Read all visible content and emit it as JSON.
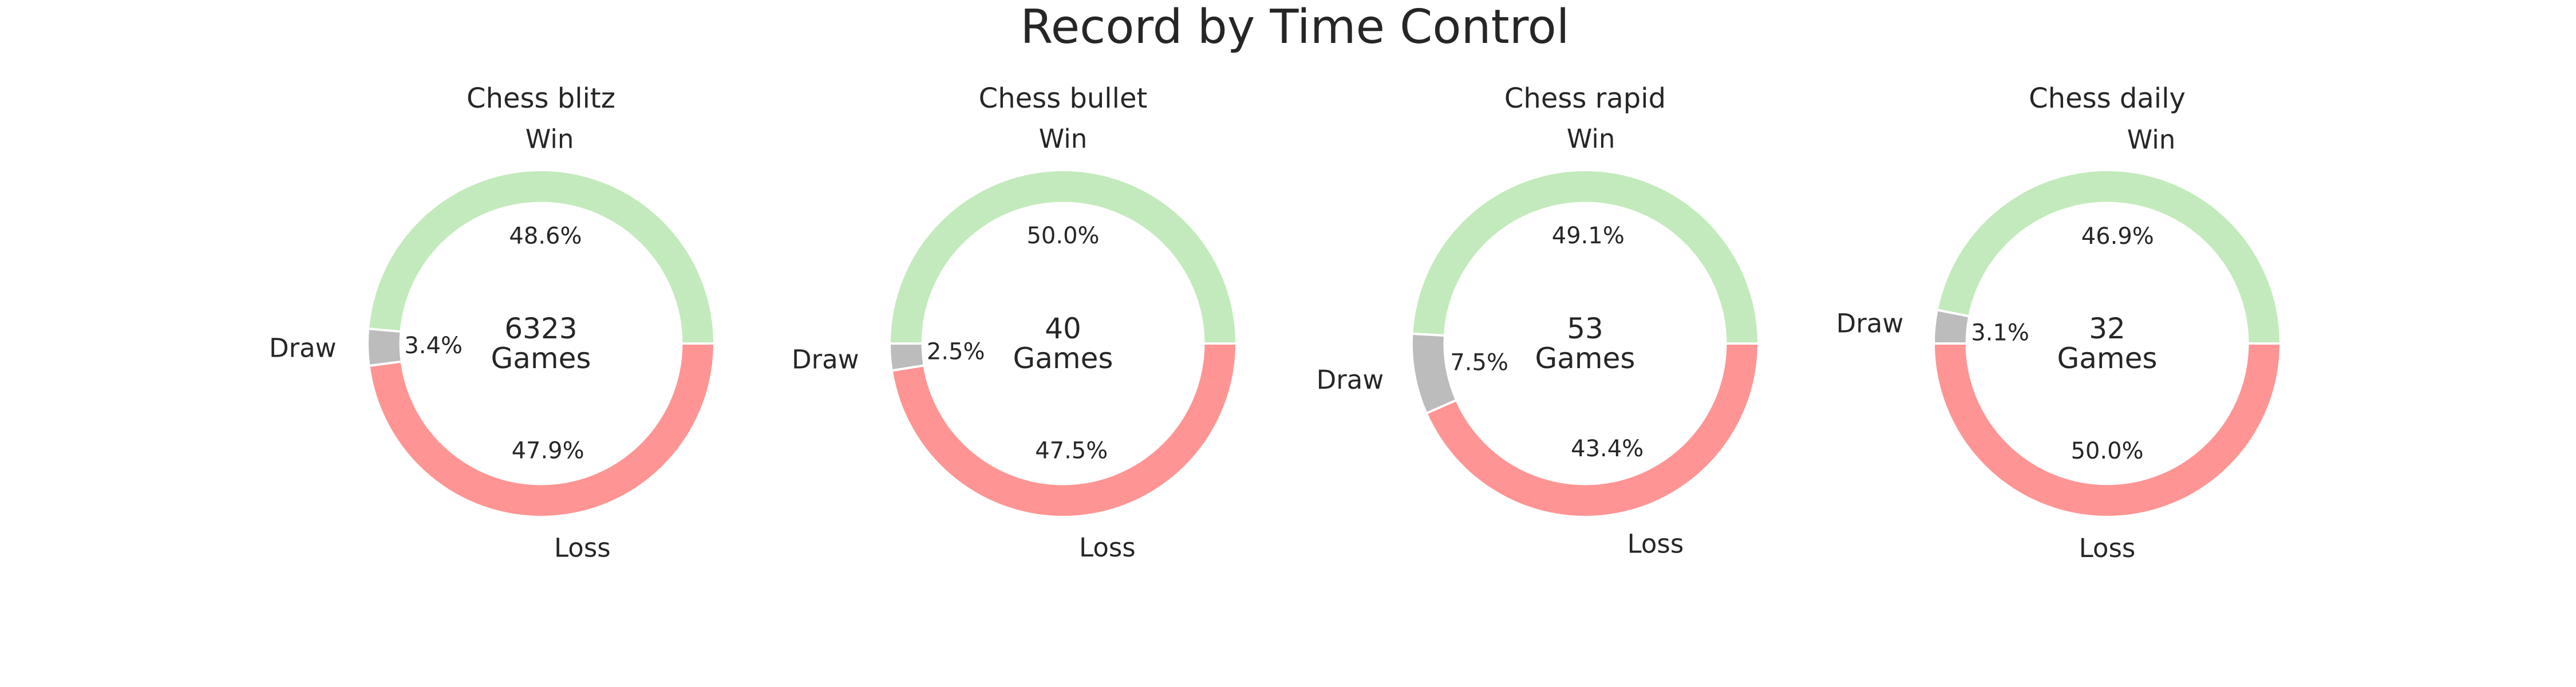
{
  "figure_title": "Record by Time Control",
  "colors": {
    "Win": "#c3eabc",
    "Loss": "#ff9494",
    "Draw": "#bcbcbc",
    "wedge_edge": "#ffffff",
    "text": "#262626"
  },
  "chart_data": [
    {
      "type": "pie",
      "style": "donut",
      "title": "Chess blitz",
      "labels": [
        "Win",
        "Draw",
        "Loss"
      ],
      "values": [
        48.6,
        3.4,
        47.9
      ],
      "value_labels": [
        "48.6%",
        "3.4%",
        "47.9%"
      ],
      "center_text": [
        "6323",
        "Games"
      ]
    },
    {
      "type": "pie",
      "style": "donut",
      "title": "Chess bullet",
      "labels": [
        "Win",
        "Draw",
        "Loss"
      ],
      "values": [
        50.0,
        2.5,
        47.5
      ],
      "value_labels": [
        "50.0%",
        "2.5%",
        "47.5%"
      ],
      "center_text": [
        "40",
        "Games"
      ]
    },
    {
      "type": "pie",
      "style": "donut",
      "title": "Chess rapid",
      "labels": [
        "Win",
        "Draw",
        "Loss"
      ],
      "values": [
        49.1,
        7.5,
        43.4
      ],
      "value_labels": [
        "49.1%",
        "7.5%",
        "43.4%"
      ],
      "center_text": [
        "53",
        "Games"
      ]
    },
    {
      "type": "pie",
      "style": "donut",
      "title": "Chess daily",
      "labels": [
        "Win",
        "Draw",
        "Loss"
      ],
      "values": [
        46.9,
        3.1,
        50.0
      ],
      "value_labels": [
        "46.9%",
        "3.1%",
        "50.0%"
      ],
      "center_text": [
        "32",
        "Games"
      ]
    }
  ]
}
